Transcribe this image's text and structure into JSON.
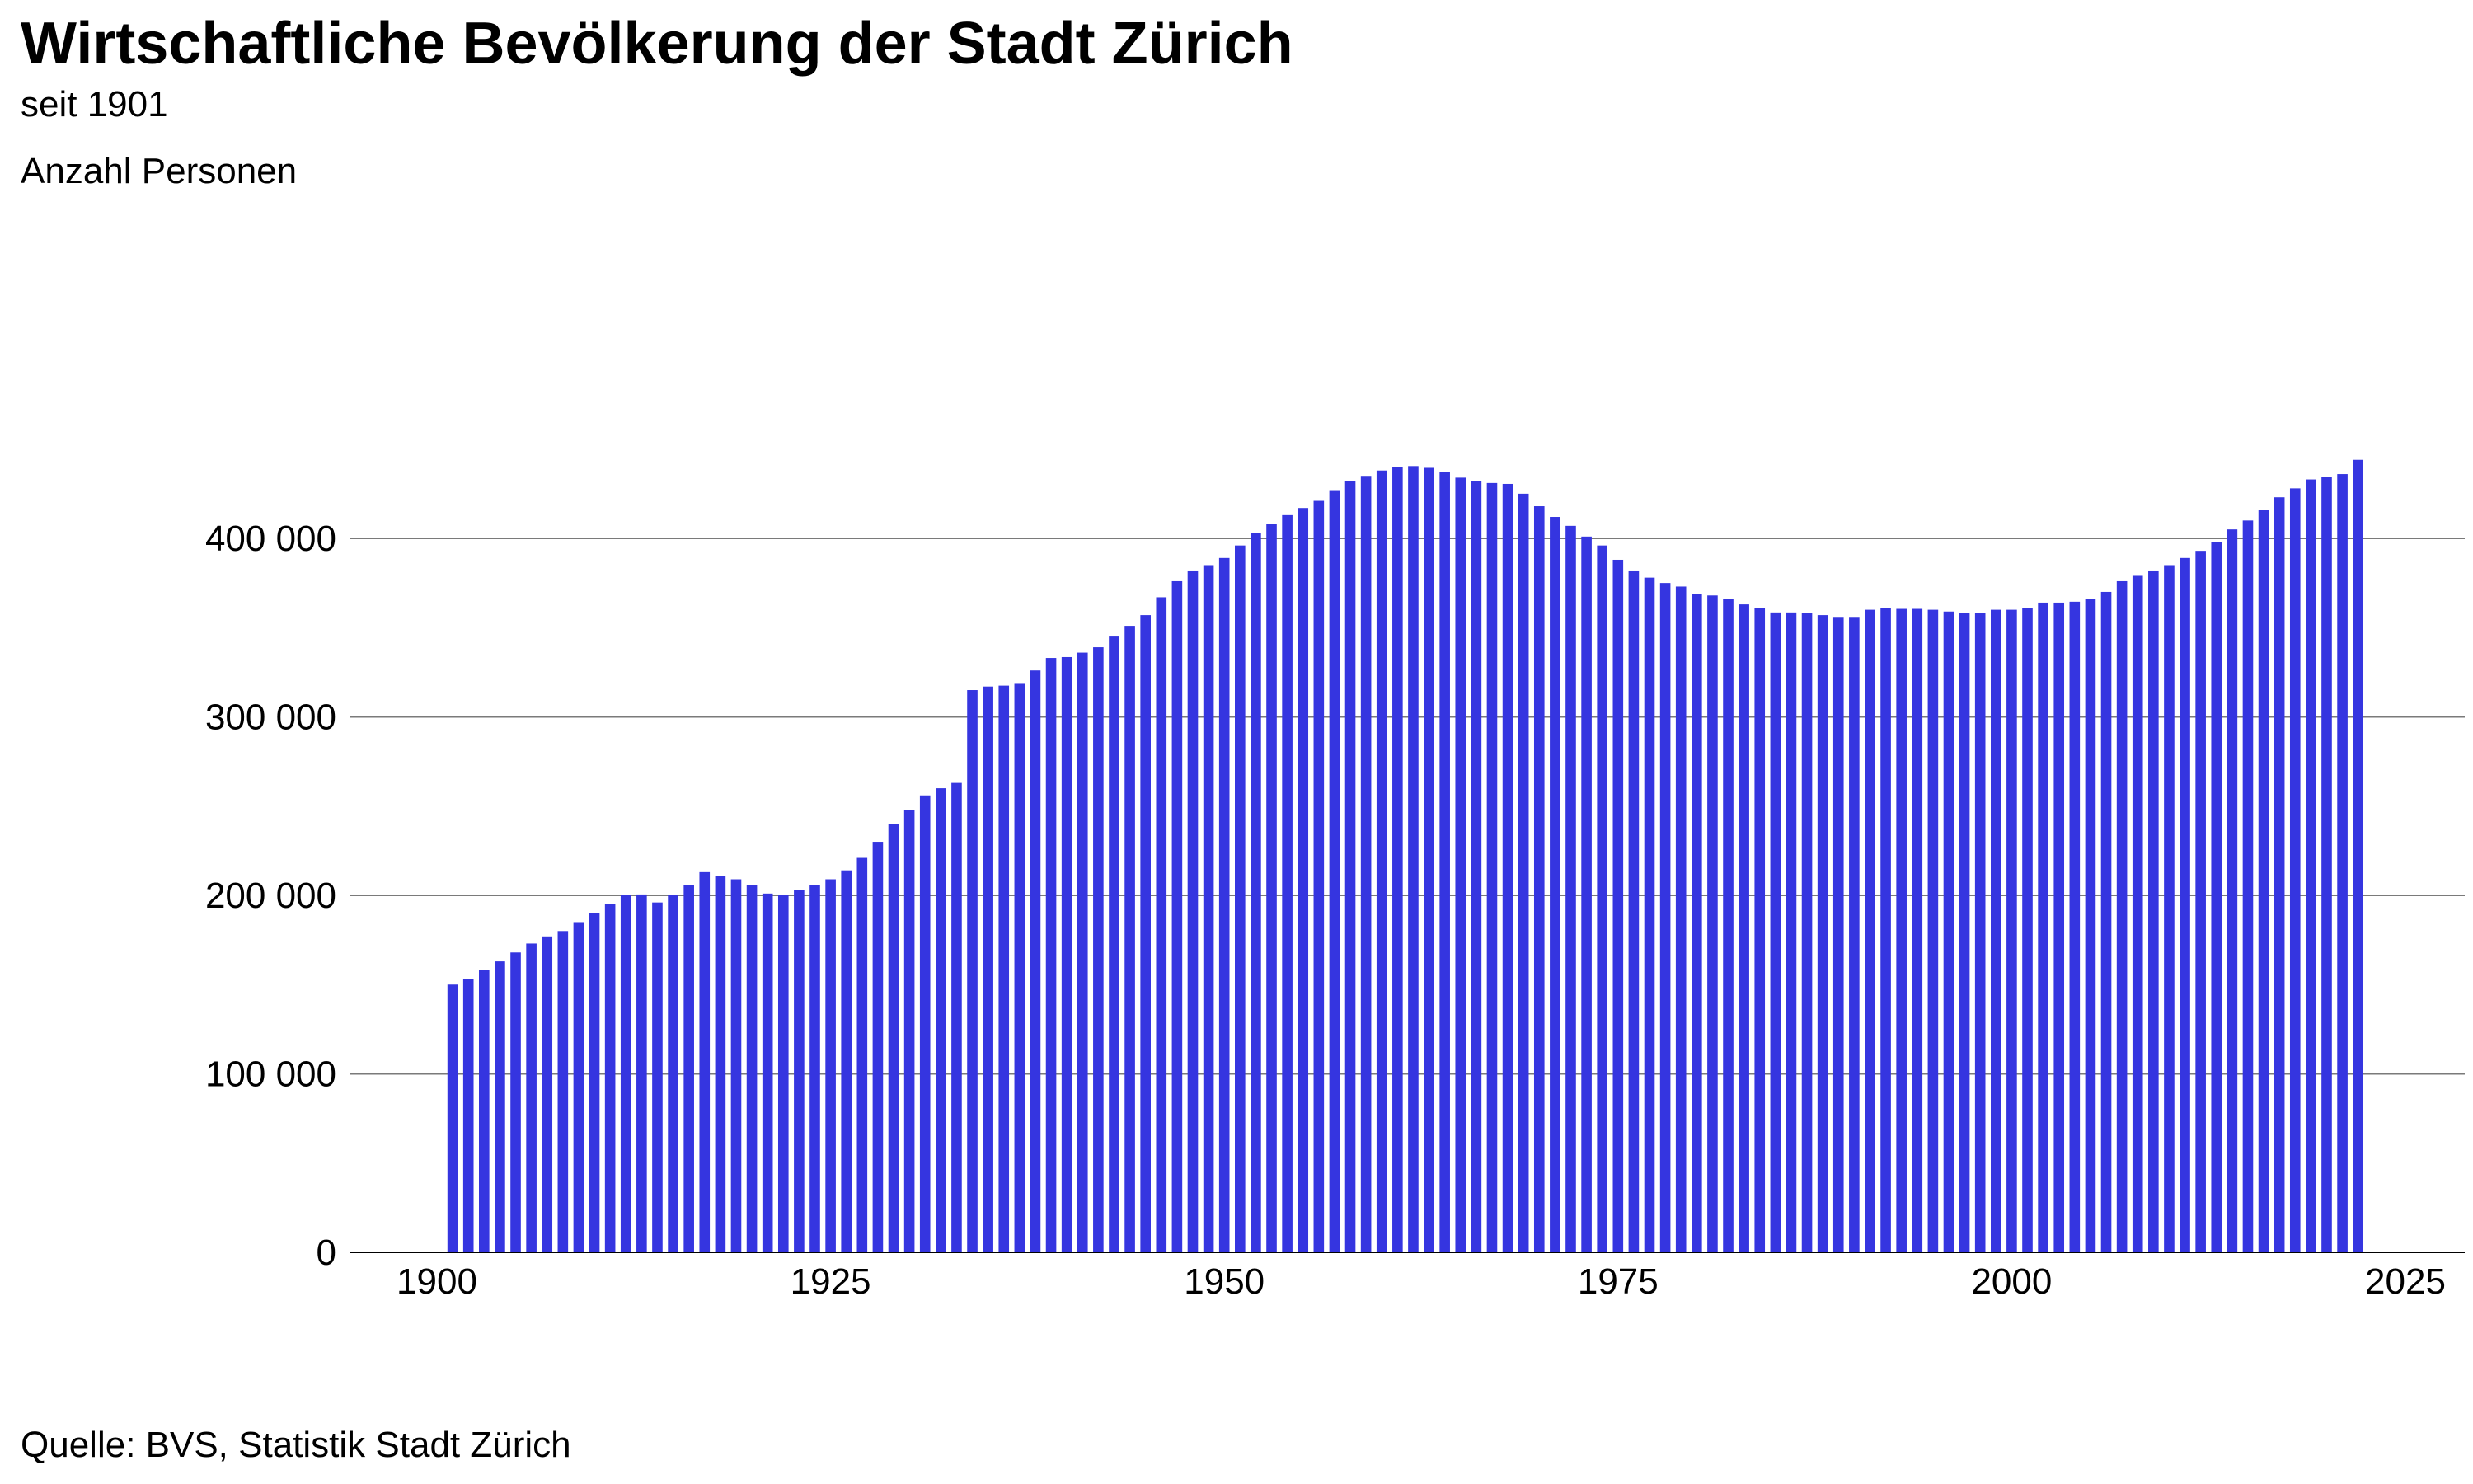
{
  "colors": {
    "bar": "#3535E0",
    "grid": "#7a7a7a",
    "axis": "#000000"
  },
  "chart_data": {
    "type": "bar",
    "title": "Wirtschaftliche Bevölkerung der Stadt Zürich",
    "subtitle": "seit 1901",
    "ylabel": "Anzahl Personen",
    "source": "Quelle: BVS, Statistik Stadt Zürich",
    "xlim": [
      1898,
      2028
    ],
    "ylim": [
      0,
      450000
    ],
    "yticks": [
      0,
      100000,
      200000,
      300000,
      400000
    ],
    "ytick_labels": [
      "0",
      "100 000",
      "200 000",
      "300 000",
      "400 000"
    ],
    "xticks": [
      1900,
      1925,
      1950,
      1975,
      2000,
      2025
    ],
    "xtick_labels": [
      "1900",
      "1925",
      "1950",
      "1975",
      "2000",
      "2025"
    ],
    "years": [
      1901,
      1902,
      1903,
      1904,
      1905,
      1906,
      1907,
      1908,
      1909,
      1910,
      1911,
      1912,
      1913,
      1914,
      1915,
      1916,
      1917,
      1918,
      1919,
      1920,
      1921,
      1922,
      1923,
      1924,
      1925,
      1926,
      1927,
      1928,
      1929,
      1930,
      1931,
      1932,
      1933,
      1934,
      1935,
      1936,
      1937,
      1938,
      1939,
      1940,
      1941,
      1942,
      1943,
      1944,
      1945,
      1946,
      1947,
      1948,
      1949,
      1950,
      1951,
      1952,
      1953,
      1954,
      1955,
      1956,
      1957,
      1958,
      1959,
      1960,
      1961,
      1962,
      1963,
      1964,
      1965,
      1966,
      1967,
      1968,
      1969,
      1970,
      1971,
      1972,
      1973,
      1974,
      1975,
      1976,
      1977,
      1978,
      1979,
      1980,
      1981,
      1982,
      1983,
      1984,
      1985,
      1986,
      1987,
      1988,
      1989,
      1990,
      1991,
      1992,
      1993,
      1994,
      1995,
      1996,
      1997,
      1998,
      1999,
      2000,
      2001,
      2002,
      2003,
      2004,
      2005,
      2006,
      2007,
      2008,
      2009,
      2010,
      2011,
      2012,
      2013,
      2014,
      2015,
      2016,
      2017,
      2018,
      2019,
      2020,
      2021,
      2022
    ],
    "values": [
      150000,
      153000,
      158000,
      163000,
      168000,
      173000,
      177000,
      180000,
      185000,
      190000,
      195000,
      200000,
      200500,
      196000,
      200000,
      206000,
      213000,
      211000,
      209000,
      206000,
      201000,
      200000,
      203000,
      206000,
      209000,
      214000,
      221000,
      230000,
      240000,
      248000,
      256000,
      260000,
      263000,
      315000,
      317000,
      317500,
      318500,
      326000,
      333000,
      333500,
      336000,
      339000,
      345000,
      351000,
      357000,
      367000,
      376000,
      382000,
      385000,
      389000,
      396000,
      403000,
      408000,
      413000,
      417000,
      421000,
      427000,
      432000,
      435000,
      438000,
      440000,
      440500,
      439500,
      437000,
      434000,
      432000,
      431000,
      430500,
      425000,
      418000,
      412000,
      407000,
      401000,
      396000,
      388000,
      382000,
      378000,
      375000,
      373000,
      369000,
      368000,
      366000,
      363000,
      361000,
      358500,
      358500,
      358000,
      357000,
      356000,
      356000,
      360000,
      361000,
      360500,
      360500,
      360000,
      359000,
      358000,
      358000,
      360000,
      360000,
      361000,
      364000,
      364000,
      364500,
      366000,
      370000,
      376000,
      379000,
      382000,
      385000,
      389000,
      393000,
      398000,
      405000,
      410000,
      416000,
      423000,
      428000,
      433000,
      434500,
      436000,
      444000
    ]
  }
}
